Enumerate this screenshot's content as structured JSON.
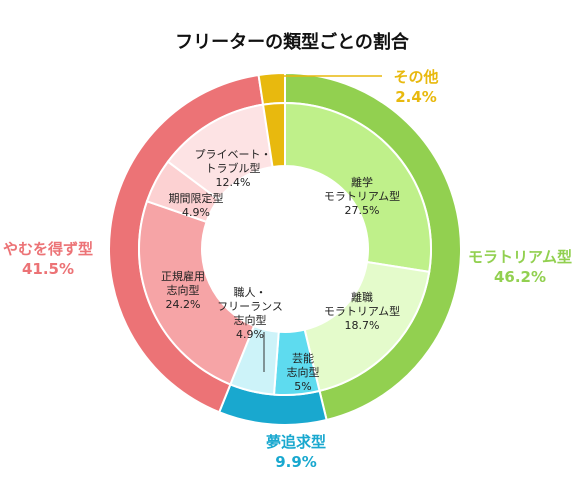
{
  "chart_data": {
    "type": "pie",
    "title": "フリーターの類型ごとの割合",
    "outer_ring": [
      {
        "name": "モラトリアム型",
        "value": 46.2,
        "label": "46.2%",
        "color": "#92d050"
      },
      {
        "name": "夢追求型",
        "value": 9.9,
        "label": "9.9%",
        "color": "#19a8cf"
      },
      {
        "name": "やむを得ず型",
        "value": 41.5,
        "label": "41.5%",
        "color": "#ec7376"
      },
      {
        "name": "その他",
        "value": 2.4,
        "label": "2.4%",
        "color": "#e8b90e"
      }
    ],
    "inner_ring": [
      {
        "name": [
          "離学",
          "モラトリアム型"
        ],
        "value": 27.5,
        "label": "27.5%",
        "color": "#bff08a"
      },
      {
        "name": [
          "離職",
          "モラトリアム型"
        ],
        "value": 18.7,
        "label": "18.7%",
        "color": "#e4fbcb"
      },
      {
        "name": [
          "芸能",
          "志向型"
        ],
        "value": 5,
        "label": "5%",
        "color": "#5edbef"
      },
      {
        "name": [
          "職人・",
          "フリーランス",
          "志向型"
        ],
        "value": 4.9,
        "label": "4.9%",
        "color": "#cdf3f9"
      },
      {
        "name": [
          "正規雇用",
          "志向型"
        ],
        "value": 24.2,
        "label": "24.2%",
        "color": "#f6a4a6"
      },
      {
        "name": [
          "期間限定型"
        ],
        "value": 4.9,
        "label": "4.9%",
        "color": "#fcd1d2"
      },
      {
        "name": [
          "プライベート・",
          "トラブル型"
        ],
        "value": 12.4,
        "label": "12.4%",
        "color": "#fde3e4"
      },
      {
        "name": [],
        "value": 2.4,
        "label": "",
        "color": "#e8b90e"
      }
    ]
  }
}
